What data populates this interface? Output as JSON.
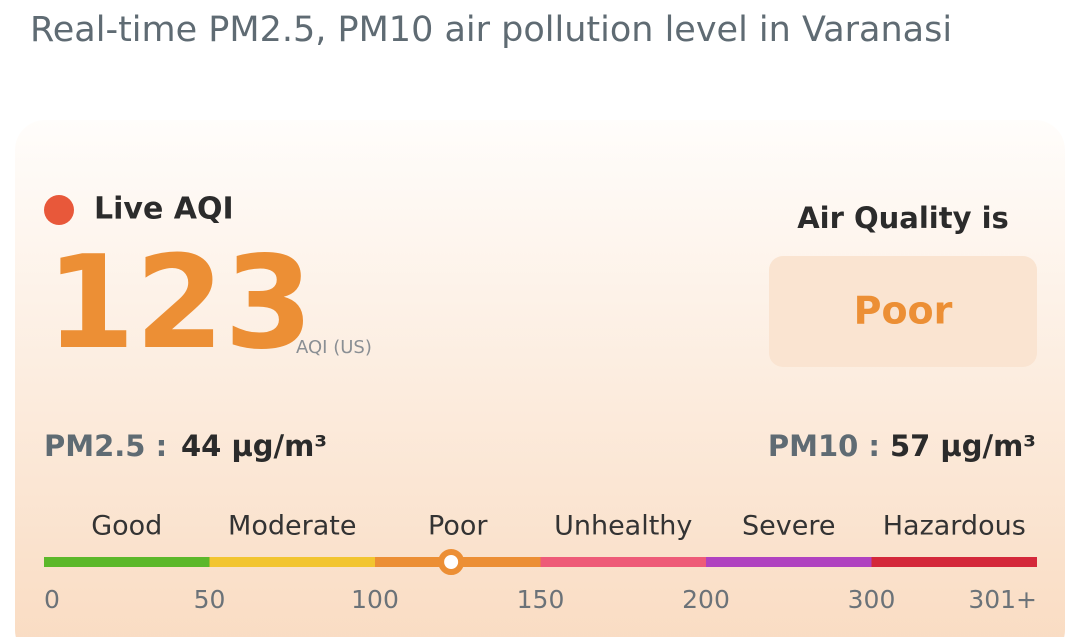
{
  "header": {
    "title": "Real-time PM2.5, PM10 air pollution level in Varanasi"
  },
  "card": {
    "live_label": "Live AQI",
    "aqi": 123,
    "aqi_unit": "AQI (US)",
    "status_label": "Air Quality is",
    "status": "Poor",
    "pm25_label": "PM2.5 :",
    "pm25": "44 µg/m³",
    "pm10_label": "PM10 :",
    "pm10": "57 µg/m³"
  },
  "scale": {
    "categories": [
      {
        "label": "Good",
        "color": "#5cb82a"
      },
      {
        "label": "Moderate",
        "color": "#f2c530"
      },
      {
        "label": "Poor",
        "color": "#ec8f35"
      },
      {
        "label": "Unhealthy",
        "color": "#ee5b78"
      },
      {
        "label": "Severe",
        "color": "#b042c0"
      },
      {
        "label": "Hazardous",
        "color": "#d4283a"
      }
    ],
    "ticks": [
      0,
      50,
      100,
      150,
      200,
      300,
      {
        "value": 301,
        "label": "301+"
      }
    ]
  }
}
